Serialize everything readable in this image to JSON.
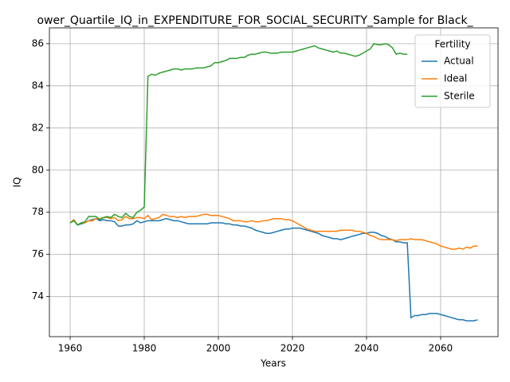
{
  "chart_data": {
    "type": "line",
    "title": "ower_Quartile_IQ_in_EXPENDITURE_FOR_SOCIAL_SECURITY_Sample for Black_",
    "xlabel": "Years",
    "ylabel": "IQ",
    "legend_title": "Fertility",
    "legend": "upper right",
    "grid": true,
    "xlim": [
      1954.4,
      2075.5
    ],
    "ylim": [
      72.1,
      86.75
    ],
    "xticks": [
      1960,
      1980,
      2000,
      2020,
      2040,
      2060
    ],
    "yticks": [
      74,
      76,
      78,
      80,
      82,
      84,
      86
    ],
    "x": [
      1960,
      1961,
      1962,
      1963,
      1964,
      1965,
      1966,
      1967,
      1968,
      1969,
      1970,
      1971,
      1972,
      1973,
      1974,
      1975,
      1976,
      1977,
      1978,
      1979,
      1980,
      1981,
      1982,
      1983,
      1984,
      1985,
      1986,
      1987,
      1988,
      1989,
      1990,
      1991,
      1992,
      1993,
      1994,
      1995,
      1996,
      1997,
      1998,
      1999,
      2000,
      2001,
      2002,
      2003,
      2004,
      2005,
      2006,
      2007,
      2008,
      2009,
      2010,
      2011,
      2012,
      2013,
      2014,
      2015,
      2016,
      2017,
      2018,
      2019,
      2020,
      2021,
      2022,
      2023,
      2024,
      2025,
      2026,
      2027,
      2028,
      2029,
      2030,
      2031,
      2032,
      2033,
      2034,
      2035,
      2036,
      2037,
      2038,
      2039,
      2040,
      2041,
      2042,
      2043,
      2044,
      2045,
      2046,
      2047,
      2048,
      2049,
      2050,
      2051,
      2052,
      2053,
      2054,
      2055,
      2056,
      2057,
      2058,
      2059,
      2060,
      2061,
      2062,
      2063,
      2064,
      2065,
      2066,
      2067,
      2068,
      2069,
      2070
    ],
    "series": [
      {
        "name": "Actual",
        "color": "#1f77b4",
        "values": [
          77.5,
          77.6,
          77.4,
          77.45,
          77.5,
          77.6,
          77.65,
          77.7,
          77.6,
          77.65,
          77.6,
          77.6,
          77.55,
          77.35,
          77.35,
          77.4,
          77.4,
          77.45,
          77.6,
          77.5,
          77.55,
          77.6,
          77.6,
          77.6,
          77.6,
          77.65,
          77.7,
          77.65,
          77.6,
          77.6,
          77.55,
          77.5,
          77.45,
          77.45,
          77.45,
          77.45,
          77.45,
          77.45,
          77.5,
          77.5,
          77.5,
          77.5,
          77.45,
          77.45,
          77.4,
          77.4,
          77.35,
          77.35,
          77.3,
          77.25,
          77.15,
          77.1,
          77.05,
          77.0,
          77.0,
          77.05,
          77.1,
          77.15,
          77.2,
          77.2,
          77.25,
          77.25,
          77.25,
          77.2,
          77.15,
          77.1,
          77.05,
          77.0,
          76.9,
          76.85,
          76.8,
          76.75,
          76.75,
          76.7,
          76.75,
          76.8,
          76.85,
          76.9,
          76.95,
          77.0,
          77.0,
          77.05,
          77.05,
          77.0,
          76.9,
          76.85,
          76.75,
          76.7,
          76.6,
          76.6,
          76.55,
          76.55,
          73.0,
          73.1,
          73.1,
          73.15,
          73.15,
          73.2,
          73.2,
          73.2,
          73.15,
          73.1,
          73.05,
          73.0,
          72.95,
          72.9,
          72.9,
          72.85,
          72.85,
          72.85,
          72.9
        ]
      },
      {
        "name": "Ideal",
        "color": "#ff7f0e",
        "values": [
          77.5,
          77.65,
          77.4,
          77.5,
          77.5,
          77.6,
          77.6,
          77.7,
          77.7,
          77.75,
          77.75,
          77.7,
          77.75,
          77.6,
          77.65,
          77.8,
          77.7,
          77.7,
          77.75,
          77.75,
          77.7,
          77.85,
          77.65,
          77.7,
          77.75,
          77.9,
          77.85,
          77.8,
          77.8,
          77.75,
          77.8,
          77.75,
          77.8,
          77.8,
          77.8,
          77.85,
          77.9,
          77.9,
          77.85,
          77.85,
          77.85,
          77.8,
          77.75,
          77.7,
          77.6,
          77.6,
          77.6,
          77.55,
          77.55,
          77.6,
          77.55,
          77.55,
          77.6,
          77.6,
          77.65,
          77.7,
          77.7,
          77.7,
          77.65,
          77.65,
          77.6,
          77.5,
          77.4,
          77.3,
          77.2,
          77.15,
          77.1,
          77.1,
          77.1,
          77.1,
          77.1,
          77.1,
          77.1,
          77.15,
          77.15,
          77.15,
          77.15,
          77.1,
          77.1,
          77.05,
          77.0,
          76.9,
          76.85,
          76.75,
          76.7,
          76.7,
          76.7,
          76.7,
          76.65,
          76.7,
          76.7,
          76.7,
          76.75,
          76.7,
          76.7,
          76.7,
          76.65,
          76.6,
          76.55,
          76.5,
          76.4,
          76.35,
          76.3,
          76.25,
          76.25,
          76.3,
          76.25,
          76.35,
          76.3,
          76.4,
          76.4
        ]
      },
      {
        "name": "Sterile",
        "color": "#2ca02c",
        "values": [
          77.5,
          77.6,
          77.4,
          77.5,
          77.55,
          77.8,
          77.8,
          77.8,
          77.65,
          77.75,
          77.8,
          77.75,
          77.9,
          77.8,
          77.75,
          77.95,
          77.8,
          77.75,
          78.0,
          78.1,
          78.25,
          84.45,
          84.55,
          84.5,
          84.6,
          84.65,
          84.7,
          84.75,
          84.8,
          84.8,
          84.75,
          84.8,
          84.8,
          84.8,
          84.85,
          84.85,
          84.85,
          84.9,
          84.95,
          85.1,
          85.1,
          85.15,
          85.2,
          85.3,
          85.3,
          85.3,
          85.35,
          85.35,
          85.45,
          85.5,
          85.5,
          85.55,
          85.6,
          85.6,
          85.55,
          85.55,
          85.55,
          85.6,
          85.6,
          85.6,
          85.6,
          85.65,
          85.7,
          85.75,
          85.8,
          85.85,
          85.9,
          85.8,
          85.75,
          85.7,
          85.65,
          85.6,
          85.65,
          85.55,
          85.55,
          85.5,
          85.45,
          85.4,
          85.45,
          85.55,
          85.65,
          85.75,
          86.0,
          85.95,
          85.95,
          86.0,
          85.95,
          85.8,
          85.5,
          85.55,
          85.5,
          85.5,
          null,
          null,
          null,
          null,
          null,
          null,
          null,
          null,
          null,
          null,
          null,
          null,
          null,
          null,
          null,
          null,
          null,
          null,
          null
        ]
      }
    ]
  }
}
